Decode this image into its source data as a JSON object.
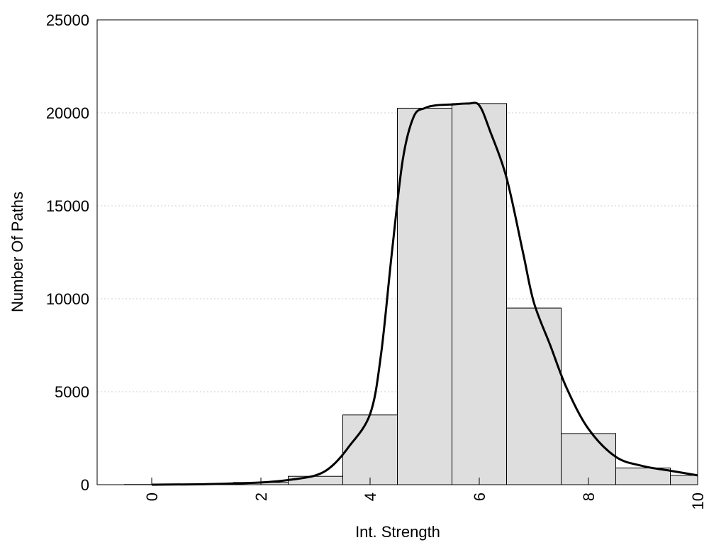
{
  "chart_data": {
    "type": "bar",
    "xlabel": "Int. Strength",
    "ylabel": "Number Of Paths",
    "xlim": [
      -1,
      10
    ],
    "ylim": [
      0,
      25000
    ],
    "x_ticks": [
      0,
      2,
      4,
      6,
      8,
      10
    ],
    "y_ticks": [
      0,
      5000,
      10000,
      15000,
      20000,
      25000
    ],
    "grid": "horizontal dotted",
    "bins": {
      "width": 1,
      "centers": [
        0,
        1,
        2,
        3,
        4,
        5,
        6,
        7,
        8,
        9,
        10
      ],
      "values": [
        10,
        15,
        120,
        450,
        3750,
        20250,
        20500,
        9500,
        2750,
        900,
        500
      ]
    },
    "curve": {
      "x": [
        0,
        1,
        2,
        2.5,
        3,
        3.3,
        3.6,
        4,
        4.2,
        4.4,
        4.6,
        4.8,
        5,
        5.2,
        5.5,
        5.8,
        6,
        6.2,
        6.5,
        6.8,
        7,
        7.3,
        7.6,
        8,
        8.5,
        9,
        9.5,
        10
      ],
      "y": [
        0,
        30,
        120,
        250,
        500,
        1000,
        2000,
        3800,
        7000,
        12500,
        17500,
        19800,
        20250,
        20400,
        20450,
        20500,
        20400,
        19000,
        16500,
        12500,
        9800,
        7500,
        5200,
        3000,
        1500,
        1000,
        750,
        500
      ]
    },
    "colors": {
      "bar_fill": "#dedede",
      "bar_stroke": "#000000",
      "curve": "#000000",
      "grid": "#cccccc"
    }
  }
}
